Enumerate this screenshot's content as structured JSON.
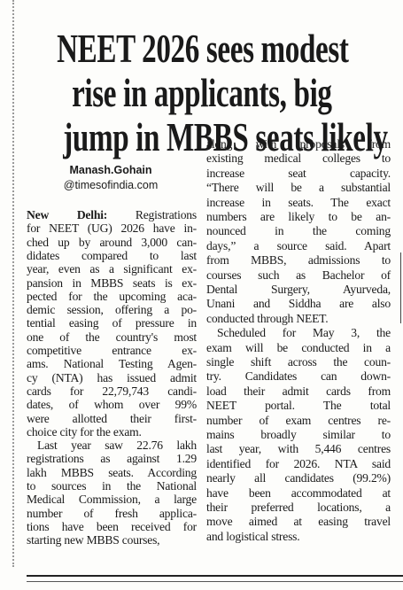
{
  "headline": {
    "lines": [
      "NEET 2026 sees modest",
      "rise in applicants, big",
      "jump in MBBS seats likely"
    ]
  },
  "byline": {
    "author": "Manash.Gohain",
    "handle": "@timesofindia.com"
  },
  "columns": [
    {
      "paragraphs": [
        {
          "dateline": "New Delhi:",
          "lines": [
            "Registrations",
            "for NEET (UG) 2026 have in-",
            "ched up by around 3,000 can-",
            "didates compared to last",
            "year, even as a significant ex-",
            "pansion in MBBS seats is ex-",
            "pected for the upcoming aca-",
            "demic session, offering a po-",
            "tential easing of pressure in",
            "one of the country's most",
            "competitive entrance ex-",
            "ams. National Testing Agen-",
            "cy (NTA) has issued admit",
            "cards for 22,79,743 candi-",
            "dates, of whom over 99%",
            "were allotted their first-",
            "choice city for the exam."
          ]
        },
        {
          "lines": [
            "Last year saw 22.76 lakh",
            "registrations as against 1.29",
            "lakh MBBS seats. According",
            "to sources in the National",
            "Medical Commission, a large",
            "number of fresh applica-",
            "tions have been received for",
            "starting new MBBS courses,"
          ]
        }
      ]
    },
    {
      "paragraphs": [
        {
          "lines": [
            "along with proposals from",
            "existing medical colleges to",
            "increase seat capacity.",
            "“There will be a substantial",
            "increase in seats. The exact",
            "numbers are likely to be an-",
            "nounced in the coming",
            "days,” a source said. Apart",
            "from MBBS, admissions to",
            "courses such as Bachelor of",
            "Dental Surgery, Ayurveda,",
            "Unani and Siddha are also",
            "conducted through NEET."
          ]
        },
        {
          "lines": [
            "Scheduled for May 3, the",
            "exam will be conducted in a",
            "single shift across the coun-",
            "try. Candidates can down-",
            "load their admit cards from",
            "NEET portal. The total",
            "number of exam centres re-",
            "mains broadly similar to",
            "last year, with 5,446 centres",
            "identified for 2026. NTA said",
            "nearly all candidates (99.2%)",
            "have been accommodated at",
            "their preferred locations, a",
            "move aimed at easing travel",
            "and logistical stress."
          ]
        }
      ]
    }
  ]
}
